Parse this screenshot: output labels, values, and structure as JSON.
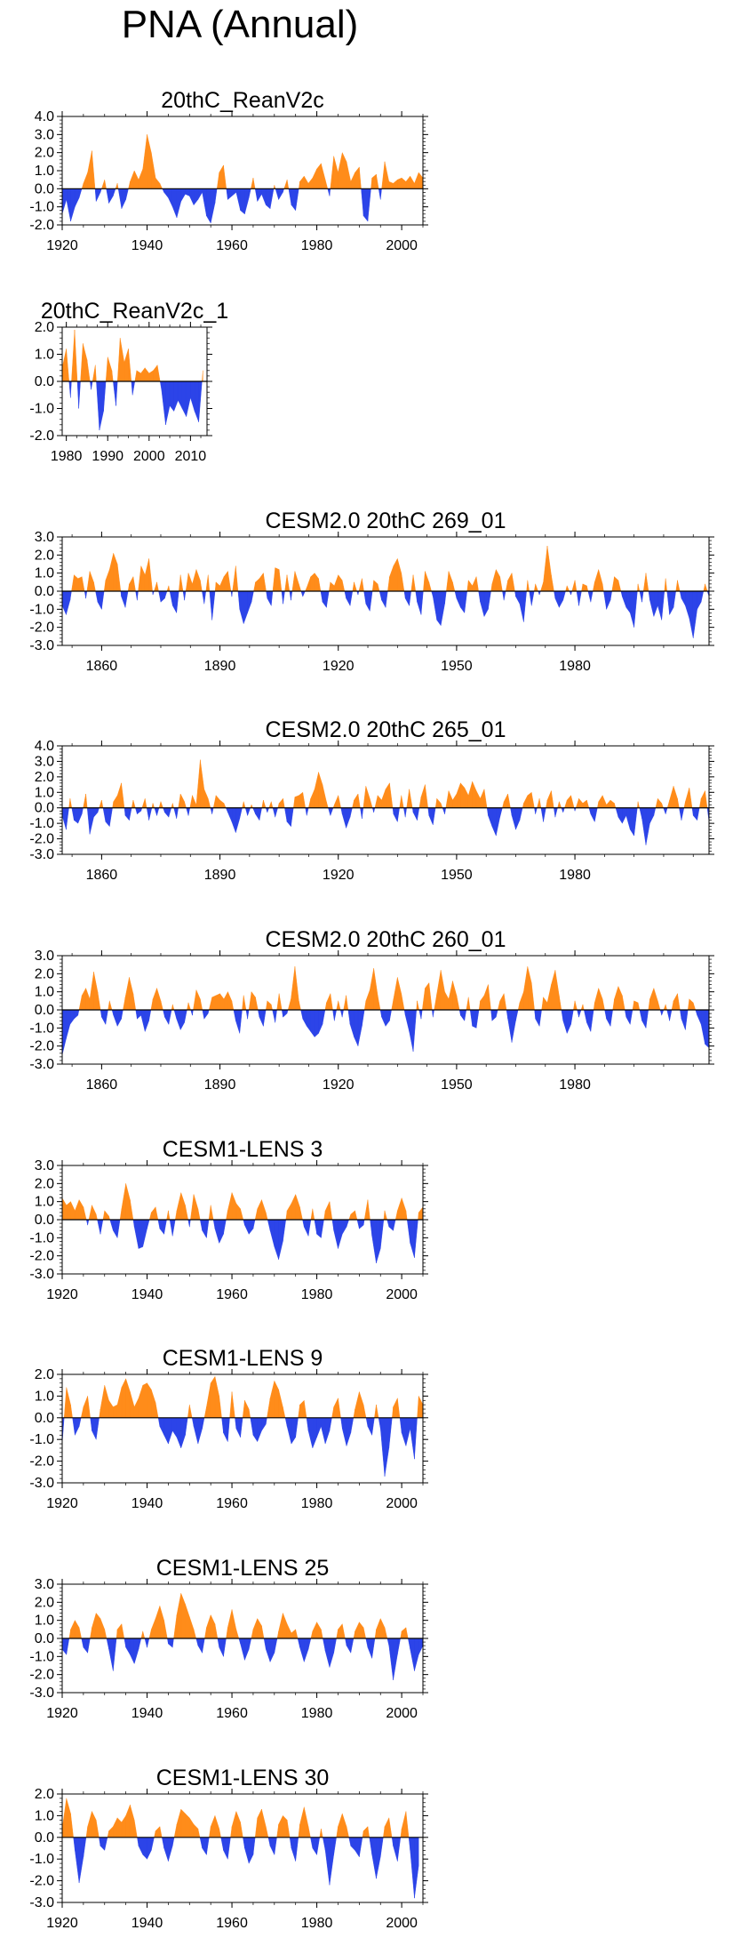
{
  "title": "PNA (Annual)",
  "colors": {
    "positive": "#ff8c1a",
    "negative": "#2c44e8",
    "axis": "#000000"
  },
  "chart_data": [
    {
      "type": "area",
      "title": "20thC_ReanV2c",
      "xlim": [
        1920,
        2005
      ],
      "ylim": [
        -2.0,
        4.0
      ],
      "yticks": [
        4.0,
        3.0,
        2.0,
        1.0,
        0.0,
        -1.0,
        -2.0
      ],
      "ytick_labels": [
        "4.0",
        "3.0",
        "2.0",
        "1.0",
        "0.0",
        "-1.0",
        "-2.0"
      ],
      "xticks": [
        1920,
        1940,
        1960,
        1980,
        2000
      ],
      "xtick_labels": [
        "1920",
        "1940",
        "1960",
        "1980",
        "2000"
      ],
      "x_start": 1920,
      "values": [
        -1.4,
        -0.6,
        -1.8,
        -1.0,
        -0.5,
        0.3,
        0.9,
        2.1,
        -0.7,
        -0.2,
        0.5,
        -0.8,
        -0.4,
        0.3,
        -1.1,
        -0.6,
        0.4,
        1.0,
        0.5,
        1.1,
        3.0,
        2.0,
        0.6,
        0.3,
        -0.2,
        -0.5,
        -1.0,
        -1.6,
        -0.7,
        -0.3,
        -0.4,
        -0.9,
        -0.6,
        -0.2,
        -1.5,
        -1.9,
        -0.8,
        0.9,
        1.3,
        -0.6,
        -0.4,
        -0.2,
        -1.2,
        -1.4,
        -0.5,
        0.6,
        -0.7,
        -0.3,
        -0.9,
        -1.1,
        0.2,
        -0.6,
        -0.2,
        0.5,
        -0.9,
        -1.2,
        0.4,
        0.7,
        0.3,
        0.6,
        1.1,
        1.4,
        0.5,
        -0.4,
        1.8,
        0.9,
        2.0,
        1.5,
        0.4,
        0.9,
        1.2,
        -1.5,
        -1.8,
        0.6,
        0.8,
        -0.6,
        1.5,
        0.4,
        0.3,
        0.5,
        0.6,
        0.4,
        0.7,
        0.3,
        0.9,
        0.6
      ]
    },
    {
      "type": "area",
      "title": "20thC_ReanV2c_1",
      "xlim": [
        1979,
        2014
      ],
      "ylim": [
        -2.0,
        2.0
      ],
      "yticks": [
        2.0,
        1.0,
        0.0,
        -1.0,
        -2.0
      ],
      "ytick_labels": [
        "2.0",
        "1.0",
        "0.0",
        "-1.0",
        "-2.0"
      ],
      "xticks": [
        1980,
        1990,
        2000,
        2010
      ],
      "xtick_labels": [
        "1980",
        "1990",
        "2000",
        "2010"
      ],
      "x_start": 1979,
      "values": [
        0.5,
        1.2,
        -0.6,
        1.9,
        -1.0,
        1.4,
        0.8,
        -0.3,
        0.6,
        -1.8,
        -1.1,
        0.9,
        0.4,
        -0.9,
        1.6,
        0.7,
        1.2,
        -0.5,
        0.4,
        0.3,
        0.5,
        0.3,
        0.4,
        0.6,
        -0.3,
        -1.6,
        -0.9,
        -1.1,
        -0.7,
        -1.0,
        -1.3,
        -0.6,
        -1.1,
        -1.5,
        0.4
      ]
    },
    {
      "type": "area",
      "title": "CESM2.0 20thC 269_01",
      "xlim": [
        1850,
        2014
      ],
      "ylim": [
        -3.0,
        3.0
      ],
      "yticks": [
        3.0,
        2.0,
        1.0,
        0.0,
        -1.0,
        -2.0,
        -3.0
      ],
      "ytick_labels": [
        "3.0",
        "2.0",
        "1.0",
        "0.0",
        "-1.0",
        "-2.0",
        "-3.0"
      ],
      "xticks": [
        1860,
        1890,
        1920,
        1950,
        1980
      ],
      "xtick_labels": [
        "1860",
        "1890",
        "1920",
        "1950",
        "1980"
      ],
      "x_start": 1850,
      "values": [
        -0.8,
        -1.3,
        -0.5,
        0.9,
        0.7,
        0.8,
        -0.4,
        1.1,
        0.5,
        -0.6,
        -1.0,
        0.6,
        1.2,
        2.1,
        1.5,
        -0.3,
        -0.9,
        0.4,
        0.8,
        -0.5,
        1.4,
        0.9,
        1.8,
        -0.2,
        0.5,
        -0.6,
        -0.4,
        0.3,
        -0.8,
        -1.2,
        0.9,
        -0.5,
        1.0,
        0.4,
        1.2,
        0.6,
        -0.7,
        0.9,
        -1.6,
        0.5,
        0.3,
        0.8,
        1.1,
        -0.3,
        1.4,
        -1.0,
        -1.8,
        -1.2,
        -0.6,
        0.5,
        0.7,
        1.0,
        -0.4,
        -0.8,
        1.3,
        1.2,
        -0.7,
        0.9,
        -0.5,
        1.1,
        0.4,
        -0.3,
        0.2,
        0.8,
        1.0,
        0.7,
        -0.6,
        -0.9,
        0.5,
        0.3,
        0.9,
        0.6,
        -0.4,
        -0.8,
        0.5,
        -0.2,
        0.7,
        -0.7,
        -1.1,
        0.6,
        0.4,
        -0.5,
        -0.9,
        0.8,
        1.4,
        1.8,
        1.0,
        -0.4,
        -0.8,
        0.9,
        -0.6,
        -1.3,
        1.1,
        0.5,
        -0.3,
        -1.6,
        -1.9,
        -0.7,
        1.1,
        0.5,
        -0.4,
        -0.9,
        -1.2,
        0.6,
        0.3,
        0.8,
        -0.6,
        -1.4,
        -1.0,
        0.4,
        1.2,
        0.8,
        -0.5,
        0.6,
        1.0,
        -0.3,
        -0.7,
        -1.7,
        0.6,
        -0.8,
        0.4,
        -0.2,
        0.5,
        2.5,
        0.9,
        -0.4,
        -0.9,
        -0.5,
        0.3,
        -0.2,
        0.6,
        -0.8,
        0.4,
        0.3,
        -0.6,
        0.5,
        1.2,
        0.4,
        -1.0,
        -0.5,
        0.8,
        0.6,
        -0.3,
        -0.9,
        -1.2,
        -2.0,
        0.4,
        -0.6,
        1.0,
        -0.5,
        -1.4,
        -0.8,
        -1.6,
        0.7,
        -1.3,
        -0.9,
        0.6,
        -0.4,
        -0.8,
        -1.5,
        -2.6,
        -1.0,
        -0.6,
        0.4,
        -0.3,
        -0.5,
        0.7,
        0.2
      ]
    },
    {
      "type": "area",
      "title": "CESM2.0 20thC 265_01",
      "xlim": [
        1850,
        2014
      ],
      "ylim": [
        -3.0,
        4.0
      ],
      "yticks": [
        4.0,
        3.0,
        2.0,
        1.0,
        0.0,
        -1.0,
        -2.0,
        -3.0
      ],
      "ytick_labels": [
        "4.0",
        "3.0",
        "2.0",
        "1.0",
        "0.0",
        "-1.0",
        "-2.0",
        "-3.0"
      ],
      "xticks": [
        1860,
        1890,
        1920,
        1950,
        1980
      ],
      "xtick_labels": [
        "1860",
        "1890",
        "1920",
        "1950",
        "1980"
      ],
      "x_start": 1850,
      "values": [
        -0.5,
        -1.4,
        0.6,
        -0.8,
        -1.0,
        -0.4,
        0.9,
        -1.7,
        -0.6,
        -0.3,
        0.5,
        -0.9,
        -1.2,
        0.4,
        0.8,
        1.6,
        -0.5,
        -0.8,
        0.5,
        -0.4,
        -0.2,
        0.6,
        -0.8,
        0.3,
        -0.5,
        0.4,
        -0.3,
        -0.6,
        0.3,
        -0.7,
        0.9,
        0.4,
        -0.5,
        0.8,
        0.2,
        3.1,
        1.2,
        0.6,
        -0.4,
        0.8,
        0.5,
        0.3,
        -0.3,
        -0.9,
        -1.6,
        -0.7,
        0.4,
        -0.5,
        0.2,
        -0.4,
        -0.8,
        0.5,
        -0.3,
        0.4,
        -0.6,
        0.3,
        0.6,
        -0.9,
        -1.2,
        0.7,
        0.8,
        1.0,
        -0.5,
        0.6,
        1.2,
        2.3,
        1.5,
        0.4,
        -0.5,
        0.2,
        0.8,
        -0.4,
        -1.3,
        -0.6,
        0.5,
        0.9,
        -0.7,
        1.4,
        0.6,
        -0.3,
        0.8,
        0.5,
        1.2,
        1.6,
        -0.4,
        -0.9,
        0.8,
        -0.6,
        1.2,
        -0.3,
        -0.8,
        0.7,
        1.5,
        -0.5,
        -1.1,
        0.6,
        0.3,
        -0.4,
        1.1,
        0.5,
        0.9,
        1.6,
        1.3,
        0.8,
        1.7,
        1.1,
        0.6,
        1.2,
        -0.5,
        -1.2,
        -1.8,
        -0.6,
        0.4,
        0.9,
        -0.5,
        -1.4,
        -0.8,
        0.3,
        0.8,
        1.0,
        -0.4,
        0.6,
        -0.9,
        0.5,
        1.1,
        -0.6,
        0.4,
        -0.3,
        0.5,
        0.8,
        -0.2,
        0.6,
        0.3,
        0.5,
        -0.4,
        -0.9,
        0.4,
        0.8,
        0.2,
        0.5,
        0.3,
        -0.6,
        -1.0,
        -0.5,
        -1.4,
        -1.8,
        0.4,
        -0.7,
        -2.4,
        -1.0,
        -0.5,
        0.6,
        0.3,
        -0.4,
        0.5,
        1.4,
        0.6,
        -0.8,
        0.4,
        1.3,
        -0.5,
        -0.8,
        0.6,
        1.1,
        -0.9,
        -1.8,
        -1.2,
        0.5,
        0.9,
        1.5
      ]
    },
    {
      "type": "area",
      "title": "CESM2.0 20thC 260_01",
      "xlim": [
        1850,
        2014
      ],
      "ylim": [
        -3.0,
        3.0
      ],
      "yticks": [
        3.0,
        2.0,
        1.0,
        0.0,
        -1.0,
        -2.0,
        -3.0
      ],
      "ytick_labels": [
        "3.0",
        "2.0",
        "1.0",
        "0.0",
        "-1.0",
        "-2.0",
        "-3.0"
      ],
      "xticks": [
        1860,
        1890,
        1920,
        1950,
        1980
      ],
      "xtick_labels": [
        "1860",
        "1890",
        "1920",
        "1950",
        "1980"
      ],
      "x_start": 1850,
      "values": [
        -2.5,
        -1.6,
        -0.8,
        -0.5,
        -0.3,
        0.8,
        1.2,
        0.6,
        2.1,
        1.0,
        -0.4,
        -0.8,
        0.5,
        -0.3,
        -0.9,
        -0.5,
        0.7,
        1.8,
        0.9,
        -0.5,
        -0.3,
        -1.2,
        -0.6,
        0.6,
        1.2,
        0.5,
        -0.4,
        -0.8,
        0.3,
        -0.5,
        -1.1,
        -0.7,
        0.4,
        -0.3,
        1.1,
        0.6,
        -0.5,
        -0.2,
        0.7,
        0.8,
        0.9,
        0.6,
        1.0,
        0.5,
        -0.6,
        -1.3,
        0.8,
        -0.5,
        1.0,
        0.7,
        -0.4,
        -0.9,
        0.5,
        0.3,
        -0.7,
        0.9,
        -0.4,
        -0.2,
        0.6,
        2.4,
        0.5,
        -0.5,
        -0.9,
        -1.2,
        -1.5,
        -1.3,
        -0.8,
        0.4,
        0.9,
        -0.6,
        0.5,
        -0.4,
        0.8,
        -0.8,
        -1.5,
        -2.0,
        -0.9,
        0.5,
        1.1,
        2.3,
        0.8,
        -0.4,
        -0.9,
        -0.6,
        0.6,
        1.8,
        0.9,
        -0.3,
        -1.2,
        -2.3,
        0.5,
        -0.5,
        1.2,
        1.5,
        -0.4,
        0.9,
        2.2,
        1.0,
        0.6,
        1.6,
        0.8,
        -0.3,
        -0.6,
        0.7,
        -0.9,
        -1.0,
        0.5,
        0.8,
        1.4,
        -0.6,
        -0.4,
        0.5,
        0.9,
        -0.5,
        -1.8,
        -0.6,
        0.4,
        1.0,
        2.4,
        1.5,
        -0.5,
        -0.9,
        0.7,
        0.4,
        1.4,
        2.2,
        0.8,
        -0.6,
        -1.3,
        -0.8,
        0.5,
        -0.4,
        0.3,
        -0.7,
        -1.2,
        0.4,
        1.2,
        0.6,
        -0.5,
        -0.9,
        0.6,
        1.3,
        0.8,
        -0.4,
        -0.8,
        0.5,
        0.4,
        -0.6,
        -1.0,
        0.6,
        1.2,
        0.5,
        -0.3,
        0.3,
        -0.6,
        0.5,
        0.9,
        -0.5,
        -1.1,
        0.6,
        0.4,
        -0.3,
        -0.8,
        -1.9,
        -2.1,
        -1.0,
        0.3
      ]
    },
    {
      "type": "area",
      "title": "CESM1-LENS 3",
      "xlim": [
        1920,
        2005
      ],
      "ylim": [
        -3.0,
        3.0
      ],
      "yticks": [
        3.0,
        2.0,
        1.0,
        0.0,
        -1.0,
        -2.0,
        -3.0
      ],
      "ytick_labels": [
        "3.0",
        "2.0",
        "1.0",
        "0.0",
        "-1.0",
        "-2.0",
        "-3.0"
      ],
      "xticks": [
        1920,
        1940,
        1960,
        1980,
        2000
      ],
      "xtick_labels": [
        "1920",
        "1940",
        "1960",
        "1980",
        "2000"
      ],
      "x_start": 1920,
      "values": [
        1.2,
        0.8,
        1.0,
        0.5,
        1.1,
        0.7,
        -0.3,
        0.8,
        0.3,
        -0.8,
        0.5,
        0.2,
        -0.6,
        -1.0,
        0.6,
        2.0,
        1.1,
        -0.4,
        -1.6,
        -1.5,
        -0.5,
        0.4,
        0.7,
        -0.5,
        -0.8,
        0.5,
        -0.9,
        0.5,
        1.5,
        0.8,
        -0.4,
        1.4,
        0.6,
        -0.6,
        -1.0,
        0.8,
        -0.5,
        -1.3,
        -0.8,
        0.5,
        1.5,
        0.9,
        0.6,
        -0.3,
        -0.8,
        -0.5,
        0.6,
        1.1,
        0.4,
        -0.6,
        -1.5,
        -2.2,
        -1.2,
        0.5,
        0.9,
        1.4,
        0.7,
        -0.4,
        -0.9,
        0.6,
        -0.8,
        -1.0,
        0.5,
        1.0,
        -0.6,
        -1.6,
        -0.8,
        -0.4,
        0.3,
        0.5,
        -0.5,
        -0.3,
        1.1,
        -0.9,
        -2.4,
        -1.6,
        0.5,
        -0.4,
        -0.6,
        0.5,
        1.2,
        0.5,
        -1.3,
        -2.1,
        0.4,
        0.7,
        0.6
      ]
    },
    {
      "type": "area",
      "title": "CESM1-LENS 9",
      "xlim": [
        1920,
        2005
      ],
      "ylim": [
        -3.0,
        2.0
      ],
      "yticks": [
        2.0,
        1.0,
        0.0,
        -1.0,
        -2.0,
        -3.0
      ],
      "ytick_labels": [
        "2.0",
        "1.0",
        "0.0",
        "-1.0",
        "-2.0",
        "-3.0"
      ],
      "xticks": [
        1920,
        1940,
        1960,
        1980,
        2000
      ],
      "xtick_labels": [
        "1920",
        "1940",
        "1960",
        "1980",
        "2000"
      ],
      "x_start": 1920,
      "values": [
        -1.2,
        1.4,
        0.6,
        -0.8,
        -0.4,
        0.5,
        1.0,
        -0.6,
        -1.0,
        0.4,
        1.5,
        0.8,
        0.5,
        0.6,
        1.4,
        1.8,
        1.2,
        0.5,
        0.9,
        1.5,
        1.6,
        1.3,
        0.7,
        -0.4,
        -0.8,
        -1.2,
        -0.6,
        -0.9,
        -1.4,
        -0.8,
        0.6,
        -0.4,
        -1.2,
        -0.5,
        0.5,
        1.6,
        1.9,
        1.0,
        -0.7,
        -1.1,
        1.2,
        -0.5,
        -0.9,
        0.8,
        0.4,
        -0.8,
        -1.1,
        -0.6,
        -0.3,
        0.9,
        1.7,
        1.3,
        0.5,
        -0.4,
        -1.2,
        -0.9,
        0.6,
        0.8,
        -0.6,
        -1.4,
        -0.9,
        -0.4,
        -1.2,
        -0.6,
        0.5,
        0.9,
        -0.5,
        -1.3,
        -0.7,
        0.4,
        1.2,
        0.6,
        -0.4,
        -0.8,
        0.6,
        -0.5,
        -2.7,
        -1.4,
        0.5,
        0.9,
        -0.7,
        -1.3,
        -0.5,
        -1.9,
        1.0,
        0.6,
        1.4
      ]
    },
    {
      "type": "area",
      "title": "CESM1-LENS 25",
      "xlim": [
        1920,
        2005
      ],
      "ylim": [
        -3.0,
        3.0
      ],
      "yticks": [
        3.0,
        2.0,
        1.0,
        0.0,
        -1.0,
        -2.0,
        -3.0
      ],
      "ytick_labels": [
        "3.0",
        "2.0",
        "1.0",
        "0.0",
        "-1.0",
        "-2.0",
        "-3.0"
      ],
      "xticks": [
        1920,
        1940,
        1960,
        1980,
        2000
      ],
      "xtick_labels": [
        "1920",
        "1940",
        "1960",
        "1980",
        "2000"
      ],
      "x_start": 1920,
      "values": [
        -0.6,
        -0.9,
        0.5,
        1.0,
        0.6,
        -0.5,
        -0.8,
        0.6,
        1.4,
        1.1,
        0.5,
        -0.6,
        -1.8,
        0.5,
        0.8,
        -0.5,
        -0.9,
        -1.4,
        -0.6,
        0.4,
        -0.5,
        0.5,
        1.1,
        1.8,
        1.0,
        -0.3,
        -0.5,
        1.3,
        2.5,
        1.9,
        1.2,
        0.5,
        -0.4,
        -0.8,
        0.6,
        1.3,
        0.8,
        -0.5,
        -1.0,
        0.6,
        1.6,
        0.5,
        -0.3,
        -1.2,
        -0.6,
        0.5,
        1.1,
        0.7,
        -0.6,
        -1.3,
        -0.8,
        0.4,
        1.4,
        0.8,
        0.3,
        0.5,
        -0.5,
        -1.3,
        -0.6,
        0.4,
        0.9,
        0.5,
        -0.7,
        -1.6,
        -0.8,
        0.5,
        0.8,
        -0.4,
        -0.8,
        0.4,
        0.9,
        0.6,
        -0.5,
        -1.1,
        0.5,
        1.1,
        0.6,
        -0.4,
        -2.3,
        -0.9,
        0.4,
        0.6,
        -0.6,
        -1.8,
        -0.9,
        -0.4,
        -0.3
      ]
    },
    {
      "type": "area",
      "title": "CESM1-LENS 30",
      "xlim": [
        1920,
        2005
      ],
      "ylim": [
        -3.0,
        2.0
      ],
      "yticks": [
        2.0,
        1.0,
        0.0,
        -1.0,
        -2.0,
        -3.0
      ],
      "ytick_labels": [
        "2.0",
        "1.0",
        "0.0",
        "-1.0",
        "-2.0",
        "-3.0"
      ],
      "xticks": [
        1920,
        1940,
        1960,
        1980,
        2000
      ],
      "xtick_labels": [
        "1920",
        "1940",
        "1960",
        "1980",
        "2000"
      ],
      "x_start": 1920,
      "values": [
        0.4,
        1.8,
        1.1,
        -0.6,
        -2.1,
        -0.9,
        0.5,
        1.2,
        0.8,
        -0.4,
        -0.6,
        0.3,
        0.5,
        0.9,
        0.7,
        1.0,
        1.5,
        0.8,
        -0.4,
        -0.8,
        -1.0,
        -0.6,
        0.3,
        0.5,
        -0.5,
        -1.1,
        -0.4,
        0.6,
        1.3,
        1.1,
        0.9,
        0.6,
        0.4,
        -0.5,
        -0.8,
        0.5,
        1.0,
        0.4,
        -0.6,
        -1.0,
        0.5,
        1.2,
        0.7,
        -0.5,
        -1.2,
        -0.8,
        0.9,
        1.3,
        0.5,
        -0.4,
        -0.8,
        0.6,
        1.0,
        0.8,
        -0.5,
        -1.1,
        0.6,
        1.4,
        0.5,
        -0.5,
        -0.8,
        0.4,
        -0.6,
        -2.2,
        -0.8,
        0.5,
        1.1,
        0.5,
        -0.4,
        -0.6,
        -0.9,
        0.3,
        0.5,
        -0.8,
        -1.9,
        -0.9,
        0.5,
        0.9,
        -0.4,
        -1.1,
        0.4,
        1.2,
        -0.6,
        -2.8,
        -1.3
      ]
    }
  ]
}
